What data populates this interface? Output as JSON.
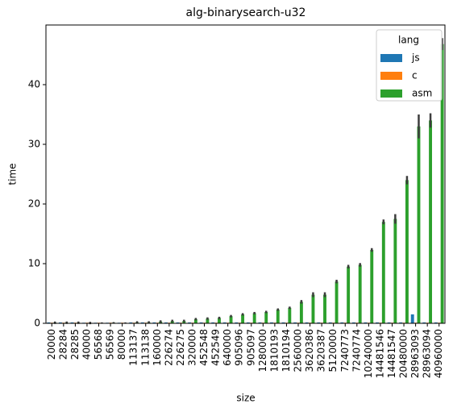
{
  "chart_data": {
    "type": "bar",
    "title": "alg-binarysearch-u32",
    "x_label": "size",
    "y_label": "time",
    "categories": [
      "20000",
      "28284",
      "28285",
      "40000",
      "56568",
      "56569",
      "80000",
      "113137",
      "113138",
      "160000",
      "226274",
      "226275",
      "320000",
      "452548",
      "452549",
      "640000",
      "905096",
      "905097",
      "1280000",
      "1810193",
      "1810194",
      "2560000",
      "3620386",
      "3620387",
      "5120000",
      "7240773",
      "7240774",
      "10240000",
      "14481546",
      "14481547",
      "20480000",
      "28963093",
      "28963094",
      "40960000"
    ],
    "series": [
      {
        "name": "js",
        "color": "#1f77b4",
        "values": [
          0.15,
          0.15,
          0.15,
          0.1,
          0.1,
          0.1,
          0.1,
          0.15,
          0.15,
          0.15,
          0.15,
          0.15,
          0.15,
          0.15,
          0.15,
          0.15,
          0.15,
          0.15,
          0.15,
          0.15,
          0.15,
          0.15,
          0.15,
          0.15,
          0.15,
          0.15,
          0.15,
          0.15,
          0.15,
          0.15,
          0.15,
          1.5,
          0.15,
          0.15
        ]
      },
      {
        "name": "c",
        "color": "#ff7f0e",
        "values": [
          0.1,
          0.1,
          0.1,
          0.1,
          0.1,
          0.1,
          0.1,
          0.1,
          0.1,
          0.1,
          0.1,
          0.1,
          0.1,
          0.1,
          0.1,
          0.1,
          0.1,
          0.1,
          0.1,
          0.1,
          0.1,
          0.1,
          0.1,
          0.1,
          0.1,
          0.1,
          0.1,
          0.1,
          0.1,
          0.1,
          0.1,
          0.1,
          0.1,
          0.1
        ]
      },
      {
        "name": "asm",
        "color": "#2ca02c",
        "values": [
          0.1,
          0.1,
          0.1,
          0.05,
          0.05,
          0.1,
          0.05,
          0.15,
          0.15,
          0.3,
          0.4,
          0.4,
          0.7,
          0.8,
          0.9,
          1.2,
          1.5,
          1.7,
          1.9,
          2.3,
          2.6,
          3.6,
          4.8,
          4.8,
          7.0,
          9.5,
          9.8,
          12.3,
          17.0,
          17.5,
          24.0,
          33.0,
          34.0,
          46.8
        ],
        "errors": [
          0.2,
          0.2,
          0.2,
          0.2,
          0.1,
          0.1,
          0.1,
          0.2,
          0.2,
          0.2,
          0.2,
          0.2,
          0.2,
          0.2,
          0.2,
          0.2,
          0.2,
          0.2,
          0.2,
          0.2,
          0.2,
          0.3,
          0.4,
          0.4,
          0.3,
          0.3,
          0.3,
          0.3,
          0.4,
          0.8,
          0.7,
          2.0,
          1.2,
          1.0
        ]
      }
    ],
    "ylim": [
      0,
      50
    ],
    "yticks": [
      0,
      10,
      20,
      30,
      40
    ],
    "legend_title": "lang",
    "legend_position": "upper right"
  }
}
